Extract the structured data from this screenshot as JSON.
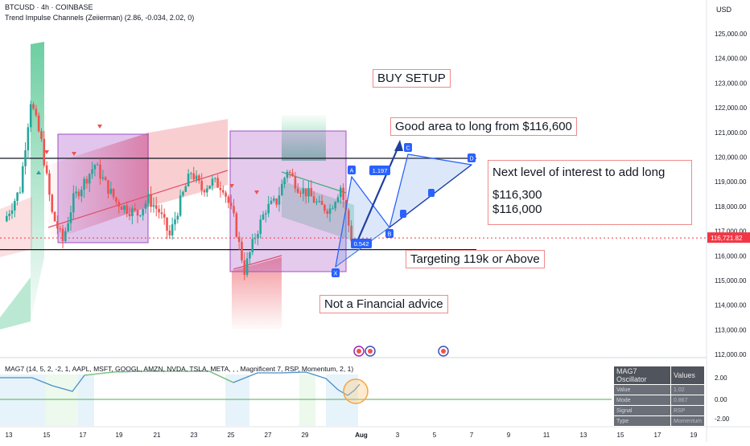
{
  "header": {
    "symbol_line": "BTCUSD · 4h · COINBASE",
    "indicator_line": "Trend Impulse Channels (Zeiierman) (2.86, -0.034, 2.02, 0)",
    "currency": "USD"
  },
  "annotations": {
    "buy_setup": "BUY SETUP",
    "good_area": "Good area to long from $116,600",
    "next_level": "Next level of interest to add long",
    "level_1": "$116,300",
    "level_2": "$116,000",
    "targeting": "Targeting 119k or Above",
    "disclaimer": "Not a Financial advice"
  },
  "pattern": {
    "points": [
      {
        "label": "X",
        "price": 115650
      },
      {
        "label": "A",
        "price": 119050
      },
      {
        "label": "B",
        "price": 117150
      },
      {
        "label": "C",
        "price": 119900
      },
      {
        "label": "D",
        "price": 119700
      }
    ],
    "ratios": [
      "0.542",
      "1.197"
    ]
  },
  "oscillator": {
    "legend": "MAG7 (14, 5, 2, -2, 1, AAPL, MSFT, GOOGL, AMZN, NVDA, TSLA, META, , , Magnificent 7, RSP, Momentum, 2, 1)",
    "table": {
      "title": "MAG7 Oscillator",
      "values_header": "Values",
      "rows": [
        {
          "label": "Value",
          "value": "1.02"
        },
        {
          "label": "Mode",
          "value": "0.867"
        },
        {
          "label": "Signal",
          "value": "RSP"
        },
        {
          "label": "Type",
          "value": "Momentum"
        }
      ]
    },
    "axis_ticks": [
      "2.00",
      "0.00",
      "-2.00"
    ]
  },
  "chart_data": {
    "type": "candlestick",
    "title": "BTCUSD · 4h · COINBASE",
    "y_unit": "USD",
    "ylim": [
      112000,
      125500
    ],
    "y_ticks": [
      125000,
      124000,
      123000,
      122000,
      121000,
      120000,
      119000,
      118000,
      117000,
      116000,
      115000,
      114000,
      113000,
      112000
    ],
    "y_tick_labels": [
      "125,000.00",
      "124,000.00",
      "123,000.00",
      "122,000.00",
      "121,000.00",
      "120,000.00",
      "119,000.00",
      "118,000.00",
      "117,000.00",
      "116,000.00",
      "115,000.00",
      "114,000.00",
      "113,000.00",
      "112,000.00"
    ],
    "x_tick_labels": [
      "13",
      "15",
      "17",
      "19",
      "21",
      "23",
      "25",
      "27",
      "29",
      "Aug",
      "3",
      "5",
      "7",
      "9",
      "11",
      "13",
      "15",
      "17",
      "19"
    ],
    "last_price": 116721.82,
    "last_price_label": "116,721.82",
    "horizontal_levels": [
      119950,
      116250
    ],
    "close_path": [
      {
        "t": 0,
        "c": 117400
      },
      {
        "t": 3,
        "c": 118700
      },
      {
        "t": 5,
        "c": 122300
      },
      {
        "t": 7,
        "c": 120600
      },
      {
        "t": 9,
        "c": 117700
      },
      {
        "t": 11,
        "c": 116600
      },
      {
        "t": 13,
        "c": 118300
      },
      {
        "t": 15,
        "c": 119000
      },
      {
        "t": 17,
        "c": 119700
      },
      {
        "t": 19,
        "c": 118900
      },
      {
        "t": 21,
        "c": 118200
      },
      {
        "t": 23,
        "c": 117900
      },
      {
        "t": 25,
        "c": 117700
      },
      {
        "t": 27,
        "c": 118300
      },
      {
        "t": 29,
        "c": 117800
      },
      {
        "t": 31,
        "c": 116800
      },
      {
        "t": 33,
        "c": 118200
      },
      {
        "t": 35,
        "c": 119400
      },
      {
        "t": 37,
        "c": 118700
      },
      {
        "t": 39,
        "c": 119000
      },
      {
        "t": 41,
        "c": 118800
      },
      {
        "t": 43,
        "c": 117500
      },
      {
        "t": 45,
        "c": 115400
      },
      {
        "t": 47,
        "c": 116800
      },
      {
        "t": 49,
        "c": 117900
      },
      {
        "t": 51,
        "c": 118200
      },
      {
        "t": 53,
        "c": 119500
      },
      {
        "t": 55,
        "c": 118800
      },
      {
        "t": 57,
        "c": 118500
      },
      {
        "t": 59,
        "c": 118000
      },
      {
        "t": 61,
        "c": 117900
      },
      {
        "t": 63,
        "c": 118800
      },
      {
        "t": 65,
        "c": 116721.82
      }
    ]
  }
}
